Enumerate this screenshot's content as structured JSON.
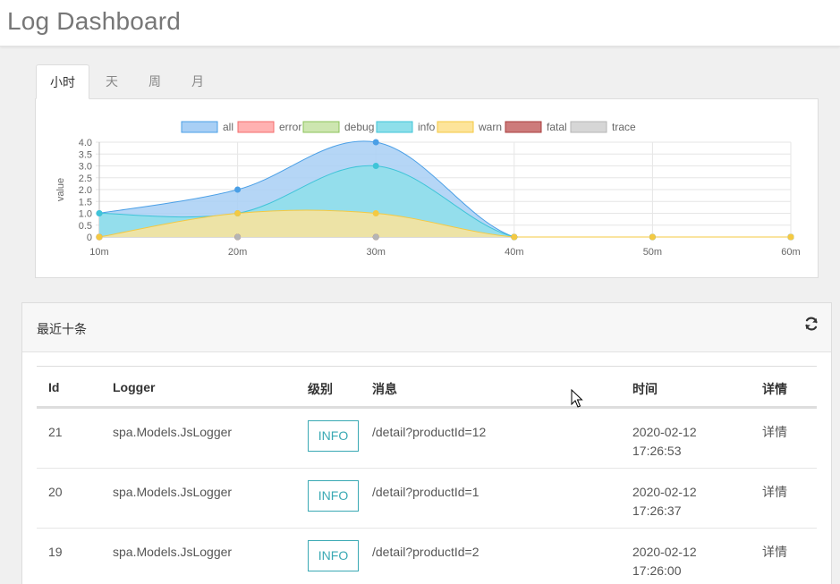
{
  "app": {
    "title": "Log Dashboard"
  },
  "tabs": [
    {
      "label": "小时",
      "active": true
    },
    {
      "label": "天",
      "active": false
    },
    {
      "label": "周",
      "active": false
    },
    {
      "label": "月",
      "active": false
    }
  ],
  "chart_data": {
    "type": "area",
    "ylabel": "value",
    "xlabel": "",
    "categories": [
      "10m",
      "20m",
      "30m",
      "40m",
      "50m",
      "60m"
    ],
    "ylim": [
      0,
      4
    ],
    "yticks": [
      "0",
      "0.5",
      "1.0",
      "1.5",
      "2.0",
      "2.5",
      "3.0",
      "3.5",
      "4.0"
    ],
    "grid": true,
    "legend_position": "top",
    "series": [
      {
        "name": "all",
        "values": [
          1,
          2,
          4,
          0,
          0,
          0
        ],
        "fill": "#a8cff5",
        "stroke": "#4a9fe6"
      },
      {
        "name": "error",
        "values": [
          0,
          0,
          0,
          0,
          0,
          0
        ],
        "fill": "#ffb1b1",
        "stroke": "#f36c6c"
      },
      {
        "name": "debug",
        "values": [
          0,
          0,
          0,
          0,
          0,
          0
        ],
        "fill": "#cde6b0",
        "stroke": "#8cc35a"
      },
      {
        "name": "info",
        "values": [
          1,
          1,
          3,
          0,
          0,
          0
        ],
        "fill": "#8edfea",
        "stroke": "#3fc4d8"
      },
      {
        "name": "warn",
        "values": [
          0,
          1,
          1,
          0,
          0,
          0
        ],
        "fill": "#fde49a",
        "stroke": "#f4c942"
      },
      {
        "name": "fatal",
        "values": [
          0,
          0,
          0,
          0,
          0,
          0
        ],
        "fill": "#cd7b7b",
        "stroke": "#a83c3c"
      },
      {
        "name": "trace",
        "values": [
          0,
          0,
          0,
          0,
          0,
          0
        ],
        "fill": "#d6d6d6",
        "stroke": "#b5b5b5"
      }
    ]
  },
  "recent": {
    "heading": "最近十条",
    "refresh_icon": "refresh-icon",
    "columns": [
      "Id",
      "Logger",
      "级别",
      "消息",
      "时间",
      "详情"
    ],
    "rows": [
      {
        "id": "21",
        "logger": "spa.Models.JsLogger",
        "level": "INFO",
        "message": "/detail?productId=12",
        "date": "2020-02-12",
        "time": "17:26:53",
        "detail": "详情"
      },
      {
        "id": "20",
        "logger": "spa.Models.JsLogger",
        "level": "INFO",
        "message": "/detail?productId=1",
        "date": "2020-02-12",
        "time": "17:26:37",
        "detail": "详情"
      },
      {
        "id": "19",
        "logger": "spa.Models.JsLogger",
        "level": "INFO",
        "message": "/detail?productId=2",
        "date": "2020-02-12",
        "time": "17:26:00",
        "detail": "详情"
      }
    ]
  },
  "colors": {
    "accent": "#3aa9b4"
  }
}
